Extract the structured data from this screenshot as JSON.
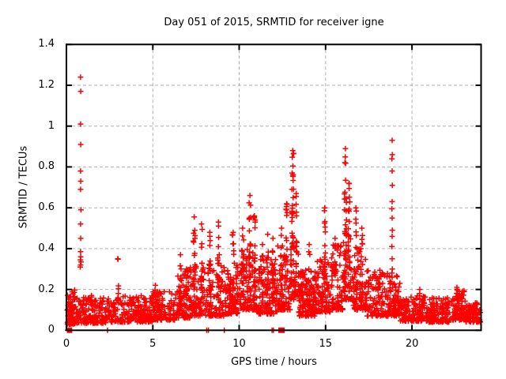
{
  "chart_data": {
    "type": "scatter",
    "title": "Day 051 of 2015, SRMTID for receiver igne",
    "xlabel": "GPS time / hours",
    "ylabel": "SRMTID / TECUs",
    "xlim": [
      0,
      24
    ],
    "ylim": [
      0,
      1.4
    ],
    "xticks": [
      0,
      5,
      10,
      15,
      20
    ],
    "xtick_labels": [
      "0",
      "5",
      "10",
      "15",
      "20"
    ],
    "yticks": [
      0,
      0.2,
      0.4,
      0.6,
      0.8,
      1,
      1.2,
      1.4
    ],
    "ytick_labels": [
      "0",
      "0.2",
      "0.4",
      "0.6",
      "0.8",
      "1",
      "1.2",
      "1.4"
    ],
    "grid": true,
    "legend": "none",
    "marker": {
      "shape": "plus",
      "color": "#ff0000",
      "size": 7,
      "stroke_width": 1.5
    },
    "grid_color": "#b0b0b0",
    "axis_color": "#000000",
    "background": "#ffffff",
    "seed": 1337,
    "outlier_points": [
      [
        0.8,
        0.31
      ],
      [
        0.82,
        0.32
      ],
      [
        0.84,
        0.335
      ],
      [
        0.81,
        0.345
      ],
      [
        0.83,
        0.36
      ],
      [
        0.82,
        0.385
      ],
      [
        0.83,
        0.45
      ],
      [
        0.82,
        0.52
      ],
      [
        0.84,
        0.59
      ],
      [
        0.82,
        0.69
      ],
      [
        0.83,
        0.73
      ],
      [
        0.82,
        0.78
      ],
      [
        0.83,
        0.91
      ],
      [
        0.82,
        1.01
      ],
      [
        0.83,
        1.17
      ],
      [
        0.82,
        1.24
      ],
      [
        18.85,
        0.93
      ],
      [
        18.86,
        0.86
      ],
      [
        18.84,
        0.84
      ],
      [
        18.85,
        0.78
      ],
      [
        18.86,
        0.71
      ],
      [
        18.85,
        0.63
      ],
      [
        18.84,
        0.595
      ],
      [
        18.85,
        0.55
      ],
      [
        18.86,
        0.49
      ],
      [
        18.85,
        0.46
      ],
      [
        18.84,
        0.41
      ],
      [
        18.85,
        0.35
      ],
      [
        18.86,
        0.3
      ],
      [
        18.84,
        0.28
      ],
      [
        18.85,
        0.26
      ]
    ],
    "zero_points": [
      [
        0.07,
        0
      ],
      [
        0.1,
        0
      ],
      [
        0.13,
        0
      ],
      [
        0.17,
        0
      ],
      [
        0.21,
        0
      ],
      [
        0.25,
        0
      ],
      [
        0.3,
        0
      ],
      [
        2.38,
        0
      ],
      [
        8.12,
        0
      ],
      [
        8.22,
        0
      ],
      [
        9.14,
        0
      ],
      [
        11.9,
        0
      ],
      [
        11.98,
        0
      ],
      [
        12.3,
        0
      ],
      [
        12.36,
        0
      ],
      [
        12.42,
        0
      ],
      [
        12.48,
        0
      ],
      [
        12.54,
        0
      ],
      [
        12.6,
        0
      ]
    ],
    "noise_clusters": [
      {
        "x0": 0.03,
        "x1": 0.55,
        "ymin": 0.03,
        "ymax": 0.21,
        "n": 90
      },
      {
        "x0": 0.55,
        "x1": 2.35,
        "ymin": 0.035,
        "ymax": 0.16,
        "n": 150
      },
      {
        "x0": 2.35,
        "x1": 3.25,
        "ymin": 0.04,
        "ymax": 0.16,
        "n": 60
      },
      {
        "x0": 3.25,
        "x1": 5.0,
        "ymin": 0.04,
        "ymax": 0.17,
        "n": 150
      },
      {
        "x0": 5.0,
        "x1": 6.35,
        "ymin": 0.05,
        "ymax": 0.19,
        "n": 110
      },
      {
        "x0": 6.35,
        "x1": 7.15,
        "ymin": 0.06,
        "ymax": 0.3,
        "n": 80
      },
      {
        "x0": 7.15,
        "x1": 8.1,
        "ymin": 0.07,
        "ymax": 0.32,
        "n": 90
      },
      {
        "x0": 8.1,
        "x1": 9.25,
        "ymin": 0.07,
        "ymax": 0.33,
        "n": 110
      },
      {
        "x0": 9.25,
        "x1": 10.05,
        "ymin": 0.08,
        "ymax": 0.33,
        "n": 90
      },
      {
        "x0": 10.05,
        "x1": 11.05,
        "ymin": 0.1,
        "ymax": 0.4,
        "n": 110
      },
      {
        "x0": 11.05,
        "x1": 12.2,
        "ymin": 0.08,
        "ymax": 0.36,
        "n": 120
      },
      {
        "x0": 12.2,
        "x1": 12.95,
        "ymin": 0.1,
        "ymax": 0.42,
        "n": 80
      },
      {
        "x0": 12.95,
        "x1": 13.45,
        "ymin": 0.15,
        "ymax": 0.45,
        "n": 50
      },
      {
        "x0": 13.45,
        "x1": 14.4,
        "ymin": 0.07,
        "ymax": 0.3,
        "n": 130
      },
      {
        "x0": 14.4,
        "x1": 15.3,
        "ymin": 0.09,
        "ymax": 0.35,
        "n": 100
      },
      {
        "x0": 15.3,
        "x1": 16.0,
        "ymin": 0.1,
        "ymax": 0.42,
        "n": 80
      },
      {
        "x0": 16.0,
        "x1": 16.55,
        "ymin": 0.15,
        "ymax": 0.45,
        "n": 60
      },
      {
        "x0": 16.55,
        "x1": 17.4,
        "ymin": 0.1,
        "ymax": 0.4,
        "n": 90
      },
      {
        "x0": 17.4,
        "x1": 18.6,
        "ymin": 0.07,
        "ymax": 0.3,
        "n": 110
      },
      {
        "x0": 18.6,
        "x1": 19.3,
        "ymin": 0.07,
        "ymax": 0.27,
        "n": 80
      },
      {
        "x0": 19.3,
        "x1": 20.9,
        "ymin": 0.045,
        "ymax": 0.17,
        "n": 140
      },
      {
        "x0": 20.9,
        "x1": 22.3,
        "ymin": 0.04,
        "ymax": 0.16,
        "n": 130
      },
      {
        "x0": 22.3,
        "x1": 23.1,
        "ymin": 0.05,
        "ymax": 0.2,
        "n": 90
      },
      {
        "x0": 23.1,
        "x1": 23.95,
        "ymin": 0.04,
        "ymax": 0.14,
        "n": 90
      }
    ],
    "spike_columns": [
      {
        "x": 1.45,
        "w": 0.1,
        "ymin": 0.06,
        "ymax": 0.17,
        "n": 8
      },
      {
        "x": 2.97,
        "w": 0.1,
        "ymin": 0.12,
        "ymax": 0.35,
        "n": 10
      },
      {
        "x": 5.15,
        "w": 0.08,
        "ymin": 0.1,
        "ymax": 0.22,
        "n": 8
      },
      {
        "x": 6.6,
        "w": 0.1,
        "ymin": 0.1,
        "ymax": 0.37,
        "n": 14
      },
      {
        "x": 6.95,
        "w": 0.08,
        "ymin": 0.1,
        "ymax": 0.3,
        "n": 10
      },
      {
        "x": 7.4,
        "w": 0.1,
        "ymin": 0.18,
        "ymax": 0.555,
        "n": 16
      },
      {
        "x": 7.82,
        "w": 0.08,
        "ymin": 0.15,
        "ymax": 0.52,
        "n": 13
      },
      {
        "x": 8.3,
        "w": 0.1,
        "ymin": 0.12,
        "ymax": 0.48,
        "n": 12
      },
      {
        "x": 8.8,
        "w": 0.1,
        "ymin": 0.15,
        "ymax": 0.53,
        "n": 13
      },
      {
        "x": 9.65,
        "w": 0.1,
        "ymin": 0.15,
        "ymax": 0.48,
        "n": 11
      },
      {
        "x": 10.2,
        "w": 0.12,
        "ymin": 0.15,
        "ymax": 0.5,
        "n": 14
      },
      {
        "x": 10.62,
        "w": 0.1,
        "ymin": 0.25,
        "ymax": 0.66,
        "n": 22
      },
      {
        "x": 10.88,
        "w": 0.1,
        "ymin": 0.2,
        "ymax": 0.56,
        "n": 16
      },
      {
        "x": 11.35,
        "w": 0.08,
        "ymin": 0.12,
        "ymax": 0.42,
        "n": 9
      },
      {
        "x": 11.65,
        "w": 0.08,
        "ymin": 0.15,
        "ymax": 0.47,
        "n": 10
      },
      {
        "x": 11.95,
        "w": 0.08,
        "ymin": 0.12,
        "ymax": 0.45,
        "n": 9
      },
      {
        "x": 12.45,
        "w": 0.1,
        "ymin": 0.15,
        "ymax": 0.5,
        "n": 12
      },
      {
        "x": 12.75,
        "w": 0.08,
        "ymin": 0.25,
        "ymax": 0.62,
        "n": 12
      },
      {
        "x": 13.1,
        "w": 0.12,
        "ymin": 0.4,
        "ymax": 0.88,
        "n": 30
      },
      {
        "x": 13.3,
        "w": 0.08,
        "ymin": 0.3,
        "ymax": 0.67,
        "n": 12
      },
      {
        "x": 14.05,
        "w": 0.1,
        "ymin": 0.12,
        "ymax": 0.42,
        "n": 10
      },
      {
        "x": 14.95,
        "w": 0.09,
        "ymin": 0.2,
        "ymax": 0.6,
        "n": 14
      },
      {
        "x": 15.55,
        "w": 0.08,
        "ymin": 0.15,
        "ymax": 0.45,
        "n": 9
      },
      {
        "x": 16.15,
        "w": 0.12,
        "ymin": 0.35,
        "ymax": 0.89,
        "n": 26
      },
      {
        "x": 16.35,
        "w": 0.1,
        "ymin": 0.3,
        "ymax": 0.72,
        "n": 14
      },
      {
        "x": 16.75,
        "w": 0.09,
        "ymin": 0.2,
        "ymax": 0.6,
        "n": 12
      },
      {
        "x": 17.1,
        "w": 0.08,
        "ymin": 0.15,
        "ymax": 0.5,
        "n": 10
      },
      {
        "x": 20.45,
        "w": 0.08,
        "ymin": 0.06,
        "ymax": 0.2,
        "n": 8
      },
      {
        "x": 22.6,
        "w": 0.08,
        "ymin": 0.06,
        "ymax": 0.21,
        "n": 8
      }
    ]
  }
}
